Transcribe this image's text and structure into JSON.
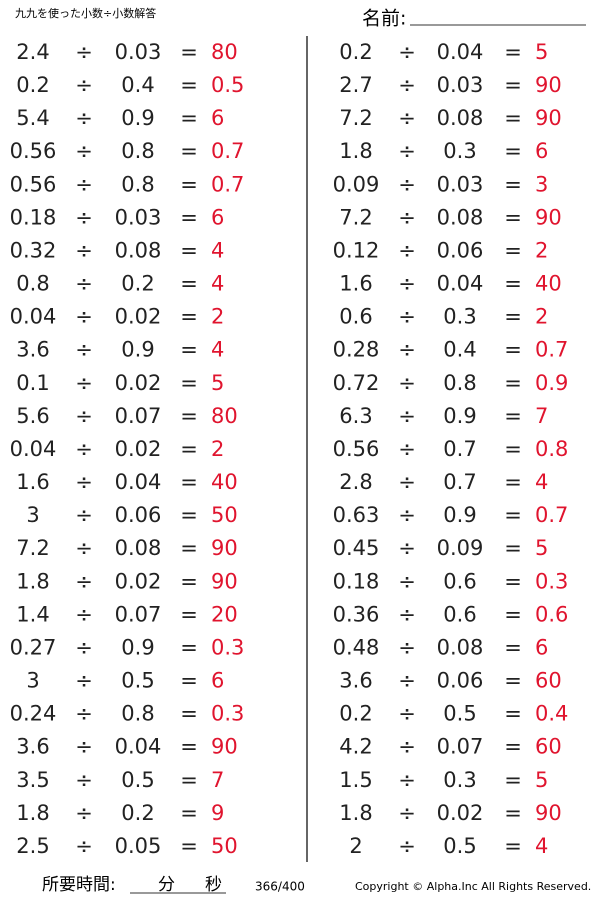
{
  "header": {
    "title": "九九を使った小数÷小数解答",
    "name_label": "名前:"
  },
  "divide_sign": "÷",
  "equals_sign": "=",
  "columns": [
    [
      {
        "a": "2.4",
        "b": "0.03",
        "answer": "80"
      },
      {
        "a": "0.2",
        "b": "0.4",
        "answer": "0.5"
      },
      {
        "a": "5.4",
        "b": "0.9",
        "answer": "6"
      },
      {
        "a": "0.56",
        "b": "0.8",
        "answer": "0.7"
      },
      {
        "a": "0.56",
        "b": "0.8",
        "answer": "0.7"
      },
      {
        "a": "0.18",
        "b": "0.03",
        "answer": "6"
      },
      {
        "a": "0.32",
        "b": "0.08",
        "answer": "4"
      },
      {
        "a": "0.8",
        "b": "0.2",
        "answer": "4"
      },
      {
        "a": "0.04",
        "b": "0.02",
        "answer": "2"
      },
      {
        "a": "3.6",
        "b": "0.9",
        "answer": "4"
      },
      {
        "a": "0.1",
        "b": "0.02",
        "answer": "5"
      },
      {
        "a": "5.6",
        "b": "0.07",
        "answer": "80"
      },
      {
        "a": "0.04",
        "b": "0.02",
        "answer": "2"
      },
      {
        "a": "1.6",
        "b": "0.04",
        "answer": "40"
      },
      {
        "a": "3",
        "b": "0.06",
        "answer": "50"
      },
      {
        "a": "7.2",
        "b": "0.08",
        "answer": "90"
      },
      {
        "a": "1.8",
        "b": "0.02",
        "answer": "90"
      },
      {
        "a": "1.4",
        "b": "0.07",
        "answer": "20"
      },
      {
        "a": "0.27",
        "b": "0.9",
        "answer": "0.3"
      },
      {
        "a": "3",
        "b": "0.5",
        "answer": "6"
      },
      {
        "a": "0.24",
        "b": "0.8",
        "answer": "0.3"
      },
      {
        "a": "3.6",
        "b": "0.04",
        "answer": "90"
      },
      {
        "a": "3.5",
        "b": "0.5",
        "answer": "7"
      },
      {
        "a": "1.8",
        "b": "0.2",
        "answer": "9"
      },
      {
        "a": "2.5",
        "b": "0.05",
        "answer": "50"
      }
    ],
    [
      {
        "a": "0.2",
        "b": "0.04",
        "answer": "5"
      },
      {
        "a": "2.7",
        "b": "0.03",
        "answer": "90"
      },
      {
        "a": "7.2",
        "b": "0.08",
        "answer": "90"
      },
      {
        "a": "1.8",
        "b": "0.3",
        "answer": "6"
      },
      {
        "a": "0.09",
        "b": "0.03",
        "answer": "3"
      },
      {
        "a": "7.2",
        "b": "0.08",
        "answer": "90"
      },
      {
        "a": "0.12",
        "b": "0.06",
        "answer": "2"
      },
      {
        "a": "1.6",
        "b": "0.04",
        "answer": "40"
      },
      {
        "a": "0.6",
        "b": "0.3",
        "answer": "2"
      },
      {
        "a": "0.28",
        "b": "0.4",
        "answer": "0.7"
      },
      {
        "a": "0.72",
        "b": "0.8",
        "answer": "0.9"
      },
      {
        "a": "6.3",
        "b": "0.9",
        "answer": "7"
      },
      {
        "a": "0.56",
        "b": "0.7",
        "answer": "0.8"
      },
      {
        "a": "2.8",
        "b": "0.7",
        "answer": "4"
      },
      {
        "a": "0.63",
        "b": "0.9",
        "answer": "0.7"
      },
      {
        "a": "0.45",
        "b": "0.09",
        "answer": "5"
      },
      {
        "a": "0.18",
        "b": "0.6",
        "answer": "0.3"
      },
      {
        "a": "0.36",
        "b": "0.6",
        "answer": "0.6"
      },
      {
        "a": "0.48",
        "b": "0.08",
        "answer": "6"
      },
      {
        "a": "3.6",
        "b": "0.06",
        "answer": "60"
      },
      {
        "a": "0.2",
        "b": "0.5",
        "answer": "0.4"
      },
      {
        "a": "4.2",
        "b": "0.07",
        "answer": "60"
      },
      {
        "a": "1.5",
        "b": "0.3",
        "answer": "5"
      },
      {
        "a": "1.8",
        "b": "0.02",
        "answer": "90"
      },
      {
        "a": "2",
        "b": "0.5",
        "answer": "4"
      }
    ]
  ],
  "footer": {
    "time_label": "所要時間:",
    "minutes": "分",
    "seconds": "秒",
    "page": "366/400",
    "copyright": "Copyright © Alpha.Inc All Rights Reserved."
  }
}
